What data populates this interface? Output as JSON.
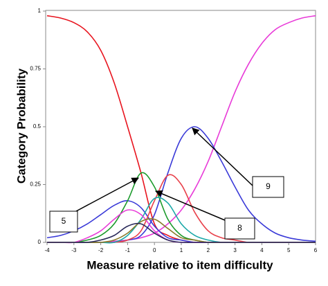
{
  "chart_data": {
    "type": "line",
    "xlabel": "Measure relative to item difficulty",
    "ylabel": "Category Probability",
    "x": [
      -4,
      -3.5,
      -3,
      -2.5,
      -2,
      -1.5,
      -1,
      -0.5,
      0,
      0.5,
      1,
      1.5,
      2,
      2.5,
      3,
      3.5,
      4,
      4.5,
      5,
      5.5,
      6
    ],
    "series": [
      {
        "color": "#e8141e",
        "values": [
          0.98,
          0.97,
          0.95,
          0.91,
          0.83,
          0.69,
          0.5,
          0.3,
          0.08,
          0.03,
          0.01,
          0,
          0,
          0,
          0,
          0,
          0,
          0,
          0,
          0,
          0
        ]
      },
      {
        "color": "#e83ad8",
        "values": [
          0,
          0,
          0,
          0,
          0,
          0.005,
          0.01,
          0.02,
          0.04,
          0.08,
          0.14,
          0.23,
          0.35,
          0.5,
          0.65,
          0.77,
          0.86,
          0.92,
          0.95,
          0.97,
          0.98
        ]
      },
      {
        "color": "#3a3ad8",
        "values": [
          0,
          0,
          0,
          0,
          0,
          0,
          0.01,
          0.03,
          0.12,
          0.3,
          0.45,
          0.5,
          0.45,
          0.35,
          0.24,
          0.14,
          0.08,
          0.04,
          0.02,
          0.01,
          0.005
        ]
      },
      {
        "color": "#3a3ad8",
        "values": [
          0.02,
          0.03,
          0.05,
          0.08,
          0.12,
          0.16,
          0.18,
          0.15,
          0.07,
          0.02,
          0.01,
          0,
          0,
          0,
          0,
          0,
          0,
          0,
          0,
          0,
          0
        ]
      },
      {
        "color": "#1a9a2a",
        "values": [
          0,
          0,
          0,
          0.01,
          0.03,
          0.08,
          0.18,
          0.3,
          0.24,
          0.1,
          0.03,
          0.01,
          0,
          0,
          0,
          0,
          0,
          0,
          0,
          0,
          0
        ]
      },
      {
        "color": "#e8404a",
        "values": [
          0,
          0,
          0,
          0,
          0,
          0,
          0.01,
          0.05,
          0.18,
          0.29,
          0.25,
          0.13,
          0.05,
          0.02,
          0.01,
          0,
          0,
          0,
          0,
          0,
          0
        ]
      },
      {
        "color": "#1aa8a8",
        "values": [
          0,
          0,
          0,
          0,
          0,
          0,
          0.03,
          0.1,
          0.19,
          0.17,
          0.08,
          0.03,
          0.01,
          0,
          0,
          0,
          0,
          0,
          0,
          0,
          0
        ]
      },
      {
        "color": "#e83ad8",
        "values": [
          0,
          0,
          0,
          0.02,
          0.05,
          0.1,
          0.14,
          0.12,
          0.05,
          0.01,
          0,
          0,
          0,
          0,
          0,
          0,
          0,
          0,
          0,
          0,
          0
        ]
      },
      {
        "color": "#8a7a2a",
        "values": [
          0,
          0,
          0,
          0,
          0,
          0.01,
          0.04,
          0.09,
          0.1,
          0.06,
          0.02,
          0.01,
          0,
          0,
          0,
          0,
          0,
          0,
          0,
          0,
          0
        ]
      },
      {
        "color": "#2a2a5a",
        "values": [
          0,
          0,
          0,
          0,
          0.01,
          0.03,
          0.07,
          0.08,
          0.04,
          0.01,
          0,
          0,
          0,
          0,
          0,
          0,
          0,
          0,
          0,
          0,
          0
        ]
      }
    ],
    "xlim": [
      -4,
      6
    ],
    "xticks": [
      -4,
      -3,
      -2,
      -1,
      0,
      1,
      2,
      3,
      4,
      5,
      6
    ],
    "ylim": [
      0,
      1
    ],
    "yticks": [
      0,
      0.25,
      0.5,
      0.75,
      1
    ],
    "annotations": [
      {
        "text": "5"
      },
      {
        "text": "8"
      },
      {
        "text": "9"
      }
    ]
  }
}
